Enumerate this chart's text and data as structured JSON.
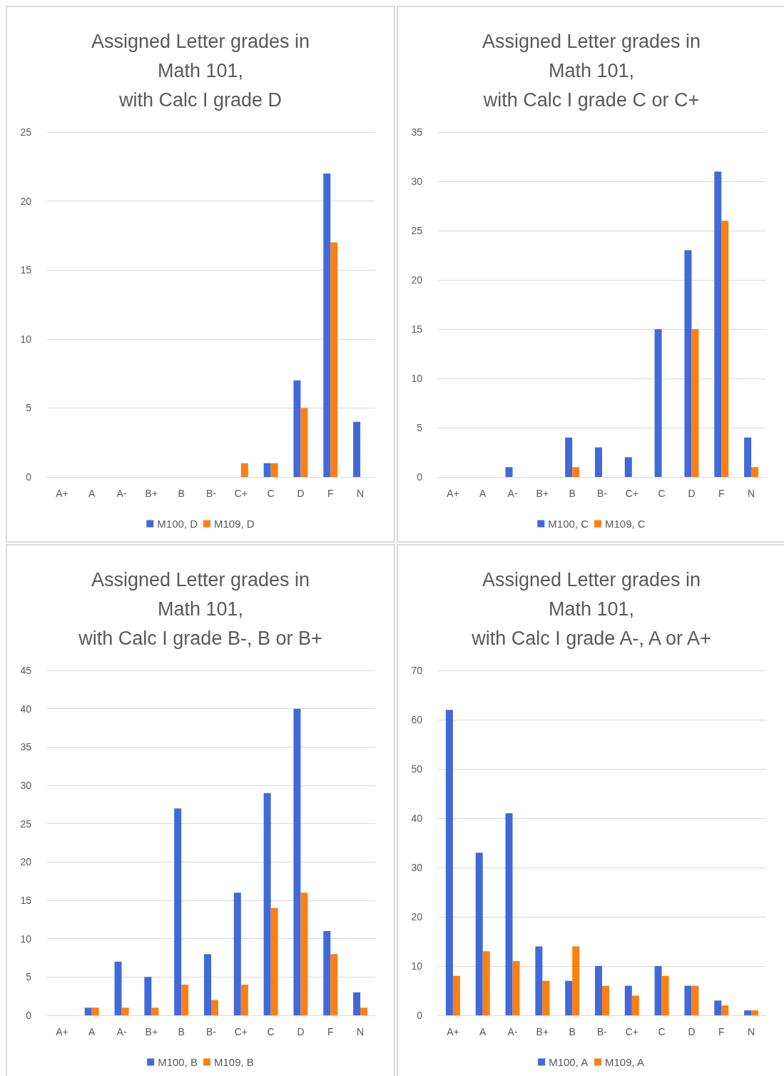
{
  "chart_data": [
    {
      "type": "bar",
      "title": "Assigned Letter grades in\nMath 101,\nwith Calc I grade D",
      "categories": [
        "A+",
        "A",
        "A-",
        "B+",
        "B",
        "B-",
        "C+",
        "C",
        "D",
        "F",
        "N"
      ],
      "series": [
        {
          "name": "M100, D",
          "color": "#4169d9",
          "values": [
            0,
            0,
            0,
            0,
            0,
            0,
            0,
            1,
            7,
            22,
            4
          ]
        },
        {
          "name": "M109, D",
          "color": "#fd7f12",
          "values": [
            0,
            0,
            0,
            0,
            0,
            0,
            1,
            1,
            5,
            17,
            0
          ]
        }
      ],
      "ylim": [
        0,
        25
      ],
      "yticks": [
        0,
        5,
        10,
        15,
        20,
        25
      ],
      "grid": "y",
      "legend": "bottom"
    },
    {
      "type": "bar",
      "title": "Assigned Letter grades in\nMath 101,\nwith Calc I grade C or C+",
      "categories": [
        "A+",
        "A",
        "A-",
        "B+",
        "B",
        "B-",
        "C+",
        "C",
        "D",
        "F",
        "N"
      ],
      "series": [
        {
          "name": "M100, C",
          "color": "#4169d9",
          "values": [
            0,
            0,
            1,
            0,
            4,
            3,
            2,
            15,
            23,
            31,
            4
          ]
        },
        {
          "name": "M109, C",
          "color": "#fd7f12",
          "values": [
            0,
            0,
            0,
            0,
            1,
            0,
            0,
            0,
            15,
            26,
            1
          ]
        }
      ],
      "ylim": [
        0,
        35
      ],
      "yticks": [
        0,
        5,
        10,
        15,
        20,
        25,
        30,
        35
      ],
      "grid": "y",
      "legend": "bottom"
    },
    {
      "type": "bar",
      "title": "Assigned Letter grades in\nMath 101,\nwith Calc I grade B-, B or B+",
      "categories": [
        "A+",
        "A",
        "A-",
        "B+",
        "B",
        "B-",
        "C+",
        "C",
        "D",
        "F",
        "N"
      ],
      "series": [
        {
          "name": "M100, B",
          "color": "#4169d9",
          "values": [
            0,
            1,
            7,
            5,
            27,
            8,
            16,
            29,
            40,
            11,
            3
          ]
        },
        {
          "name": "M109, B",
          "color": "#fd7f12",
          "values": [
            0,
            1,
            1,
            1,
            4,
            2,
            4,
            14,
            16,
            8,
            1
          ]
        }
      ],
      "ylim": [
        0,
        45
      ],
      "yticks": [
        0,
        5,
        10,
        15,
        20,
        25,
        30,
        35,
        40,
        45
      ],
      "grid": "y",
      "legend": "bottom"
    },
    {
      "type": "bar",
      "title": "Assigned Letter grades in\nMath 101,\nwith Calc I grade A-, A or A+",
      "categories": [
        "A+",
        "A",
        "A-",
        "B+",
        "B",
        "B-",
        "C+",
        "C",
        "D",
        "F",
        "N"
      ],
      "series": [
        {
          "name": "M100, A",
          "color": "#4169d9",
          "values": [
            62,
            33,
            41,
            14,
            7,
            10,
            6,
            10,
            6,
            3,
            1
          ]
        },
        {
          "name": "M109, A",
          "color": "#fd7f12",
          "values": [
            8,
            13,
            11,
            7,
            14,
            6,
            4,
            8,
            6,
            2,
            1
          ]
        }
      ],
      "ylim": [
        0,
        70
      ],
      "yticks": [
        0,
        10,
        20,
        30,
        40,
        50,
        60,
        70
      ],
      "grid": "y",
      "legend": "bottom"
    }
  ]
}
